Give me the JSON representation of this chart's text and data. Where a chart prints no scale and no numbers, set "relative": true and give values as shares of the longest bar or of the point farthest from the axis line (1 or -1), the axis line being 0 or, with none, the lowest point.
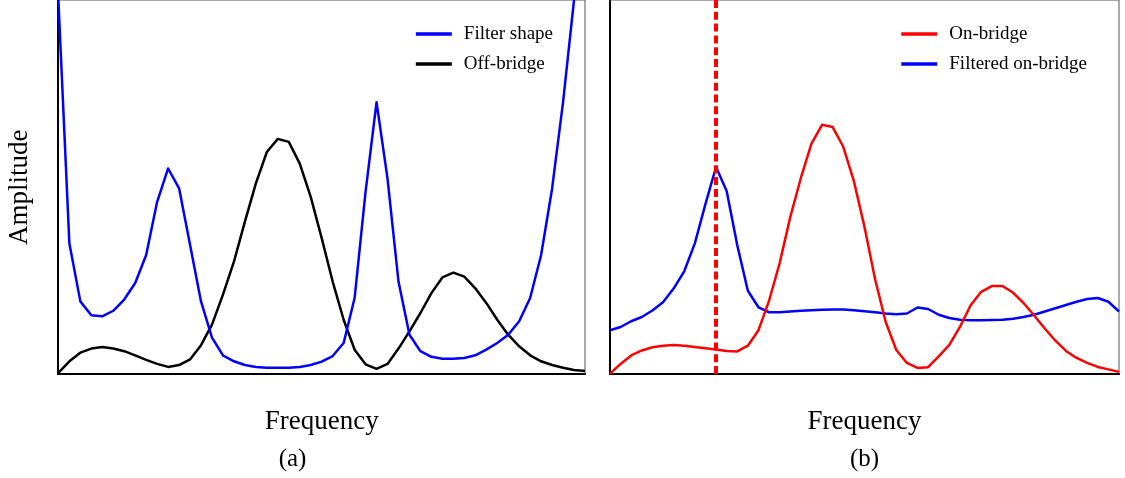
{
  "chart_data": [
    {
      "type": "line",
      "title": "(a)",
      "xlabel": "Frequency",
      "ylabel": "Amplitude",
      "relative": true,
      "legend": "top right",
      "marker": "none",
      "line_style": "solid",
      "categories": [
        null,
        null,
        null,
        null,
        null,
        null,
        null,
        null,
        null,
        null,
        null,
        null,
        null,
        null,
        null,
        null,
        null,
        null,
        null,
        null,
        null,
        null,
        null,
        null,
        null,
        null,
        null,
        null,
        null,
        null,
        null,
        null,
        null,
        null,
        null,
        null,
        null,
        null,
        null,
        null,
        null,
        null,
        null,
        null,
        null,
        null,
        null,
        null,
        null
      ],
      "series": [
        {
          "name": "Filter shape",
          "color": "#0000ff",
          "values": [
            1,
            0.35,
            0.195,
            0.158,
            0.155,
            0.17,
            0.2,
            0.244,
            0.319,
            0.461,
            0.55,
            0.497,
            0.346,
            0.195,
            0.098,
            0.051,
            0.035,
            0.025,
            0.02,
            0.018,
            0.018,
            0.018,
            0.02,
            0.025,
            0.034,
            0.049,
            0.084,
            0.204,
            0.488,
            0.727,
            0.523,
            0.248,
            0.106,
            0.062,
            0.047,
            0.042,
            0.042,
            0.044,
            0.051,
            0.066,
            0.084,
            0.106,
            0.142,
            0.204,
            0.319,
            0.496,
            0.727,
            1,
            null
          ]
        },
        {
          "name": "Off-bridge",
          "color": "#000000",
          "values": [
            0.004,
            0.035,
            0.058,
            0.069,
            0.073,
            0.069,
            0.062,
            0.051,
            0.039,
            0.028,
            0.02,
            0.025,
            0.04,
            0.078,
            0.133,
            0.213,
            0.301,
            0.408,
            0.51,
            0.594,
            0.629,
            0.621,
            0.563,
            0.474,
            0.364,
            0.248,
            0.146,
            0.066,
            0.027,
            0.015,
            0.028,
            0.069,
            0.115,
            0.164,
            0.217,
            0.259,
            0.272,
            0.261,
            0.23,
            0.191,
            0.146,
            0.106,
            0.075,
            0.051,
            0.035,
            0.025,
            0.018,
            0.012,
            0.009
          ]
        }
      ]
    },
    {
      "type": "line",
      "title": "(b)",
      "xlabel": "Frequency",
      "relative": true,
      "legend": "top right",
      "marker": "none",
      "line_style": "solid",
      "categories": [
        null,
        null,
        null,
        null,
        null,
        null,
        null,
        null,
        null,
        null,
        null,
        null,
        null,
        null,
        null,
        null,
        null,
        null,
        null,
        null,
        null,
        null,
        null,
        null,
        null,
        null,
        null,
        null,
        null,
        null,
        null,
        null,
        null,
        null,
        null,
        null,
        null,
        null,
        null,
        null,
        null,
        null,
        null,
        null,
        null,
        null,
        null,
        null,
        null
      ],
      "series": [
        {
          "name": "On-bridge",
          "color": "#ff0000",
          "values": [
            0.003,
            0.042,
            0.076,
            0.096,
            0.109,
            0.115,
            0.118,
            0.115,
            0.11,
            0.105,
            0.1,
            0.094,
            0.092,
            0.115,
            0.177,
            0.295,
            0.446,
            0.63,
            0.787,
            0.925,
            1,
            0.991,
            0.912,
            0.774,
            0.591,
            0.381,
            0.21,
            0.098,
            0.046,
            0.026,
            0.029,
            0.072,
            0.118,
            0.19,
            0.276,
            0.331,
            0.354,
            0.354,
            0.328,
            0.286,
            0.236,
            0.184,
            0.135,
            0.094,
            0.066,
            0.046,
            0.03,
            0.02,
            0.01
          ]
        },
        {
          "name": "Filtered on-bridge",
          "color": "#0000ff",
          "values": [
            0.177,
            0.19,
            0.213,
            0.23,
            0.256,
            0.289,
            0.344,
            0.413,
            0.525,
            0.682,
            0.831,
            0.735,
            0.518,
            0.335,
            0.269,
            0.249,
            0.249,
            0.252,
            0.255,
            0.257,
            0.259,
            0.26,
            0.26,
            0.257,
            0.253,
            0.249,
            0.244,
            0.241,
            0.244,
            0.268,
            0.262,
            0.239,
            0.226,
            0.219,
            0.217,
            0.217,
            0.218,
            0.219,
            0.223,
            0.23,
            0.239,
            0.252,
            0.265,
            0.278,
            0.291,
            0.302,
            0.306,
            0.291,
            0.252
          ]
        }
      ]
    }
  ]
}
